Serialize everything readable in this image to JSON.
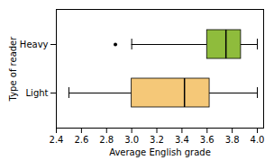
{
  "chart_data": {
    "type": "box",
    "orientation": "horizontal",
    "xlabel": "Average English grade",
    "ylabel": "Type of reader",
    "categories": [
      "Heavy",
      "Light"
    ],
    "whisker_low": [
      3.0,
      2.5
    ],
    "q1": [
      3.6,
      3.0
    ],
    "median": [
      3.75,
      3.42
    ],
    "q3": [
      3.87,
      3.62
    ],
    "whisker_high": [
      4.0,
      4.0
    ],
    "outliers": [
      [
        2.87
      ],
      []
    ],
    "colors": [
      "#8fbc3c",
      "#f5c878"
    ],
    "xlim": [
      2.4,
      4.05
    ],
    "xticks": [
      2.4,
      2.6,
      2.8,
      {
        "value": 3.0,
        "label": "3.0"
      },
      3.2,
      3.4,
      3.6,
      3.8,
      {
        "value": 4.0,
        "label": "4.0"
      }
    ],
    "grid": false
  }
}
